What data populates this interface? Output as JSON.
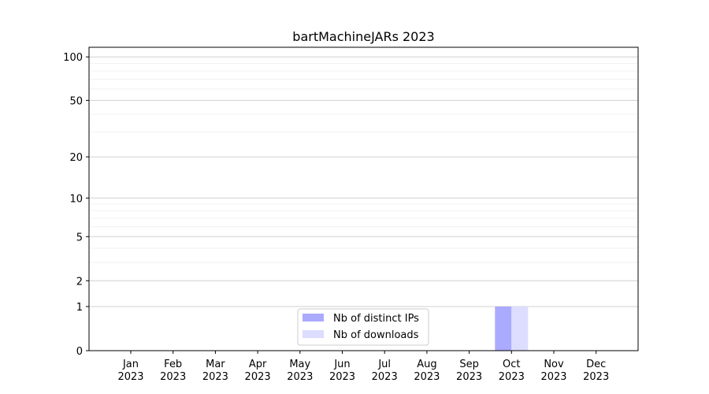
{
  "chart_data": {
    "type": "bar",
    "title": "bartMachineJARs 2023",
    "xlabel": "",
    "ylabel": "",
    "categories": [
      "Jan\n2023",
      "Feb\n2023",
      "Mar\n2023",
      "Apr\n2023",
      "May\n2023",
      "Jun\n2023",
      "Jul\n2023",
      "Aug\n2023",
      "Sep\n2023",
      "Oct\n2023",
      "Nov\n2023",
      "Dec\n2023"
    ],
    "series": [
      {
        "name": "Nb of distinct IPs",
        "color": "#aaaaff",
        "values": [
          0,
          0,
          0,
          0,
          0,
          0,
          0,
          0,
          0,
          1,
          0,
          0
        ]
      },
      {
        "name": "Nb of downloads",
        "color": "#ddddff",
        "values": [
          0,
          0,
          0,
          0,
          0,
          0,
          0,
          0,
          0,
          1,
          0,
          0
        ]
      }
    ],
    "yscale": "log(1+y)",
    "yticks": [
      0,
      1,
      2,
      5,
      10,
      20,
      50,
      100
    ],
    "ylim": [
      0,
      116
    ],
    "grid": true,
    "legend": "bottom-center"
  }
}
